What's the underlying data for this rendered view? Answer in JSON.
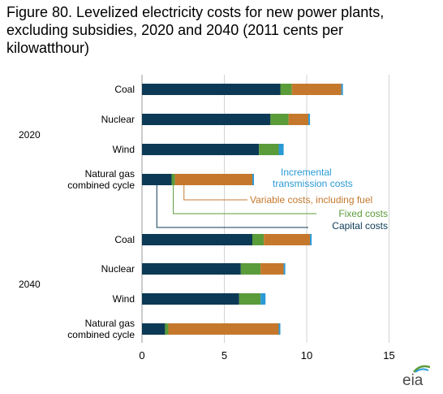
{
  "chart_data": {
    "type": "bar",
    "orientation": "horizontal",
    "stacked": true,
    "title": "Figure 80. Levelized electricity costs for new power plants, excluding subsidies, 2020 and 2040 (2011 cents per kilowatthour)",
    "xlabel": "",
    "ylabel": "",
    "xlim": [
      0,
      15
    ],
    "xticks": [
      0,
      5,
      10,
      15
    ],
    "grid": true,
    "groups": [
      {
        "label": "2020",
        "categories": [
          "Coal",
          "Nuclear",
          "Wind",
          "Natural gas combined cycle"
        ],
        "series": [
          {
            "name": "Capital costs",
            "color": "#0c3a56",
            "values": [
              8.4,
              7.8,
              7.1,
              1.8
            ]
          },
          {
            "name": "Fixed costs",
            "color": "#5a9b3a",
            "values": [
              0.7,
              1.1,
              1.2,
              0.2
            ]
          },
          {
            "name": "Variable costs, including fuel",
            "color": "#c5782c",
            "values": [
              3.0,
              1.2,
              0.0,
              4.7
            ]
          },
          {
            "name": "Incremental transmission costs",
            "color": "#2a9ad6",
            "values": [
              0.1,
              0.1,
              0.3,
              0.1
            ]
          }
        ]
      },
      {
        "label": "2040",
        "categories": [
          "Coal",
          "Nuclear",
          "Wind",
          "Natural gas combined cycle"
        ],
        "series": [
          {
            "name": "Capital costs",
            "color": "#0c3a56",
            "values": [
              6.7,
              6.0,
              5.9,
              1.4
            ]
          },
          {
            "name": "Fixed costs",
            "color": "#5a9b3a",
            "values": [
              0.7,
              1.2,
              1.3,
              0.2
            ]
          },
          {
            "name": "Variable costs, including fuel",
            "color": "#c5782c",
            "values": [
              2.8,
              1.4,
              0.0,
              6.7
            ]
          },
          {
            "name": "Incremental transmission costs",
            "color": "#2a9ad6",
            "values": [
              0.1,
              0.1,
              0.3,
              0.1
            ]
          }
        ]
      }
    ],
    "annotations": [
      {
        "label": "Incremental transmission costs",
        "series": 3
      },
      {
        "label": "Variable costs, including fuel",
        "series": 2
      },
      {
        "label": "Fixed costs",
        "series": 1
      },
      {
        "label": "Capital costs",
        "series": 0
      }
    ]
  },
  "logo": {
    "text": "eia"
  }
}
